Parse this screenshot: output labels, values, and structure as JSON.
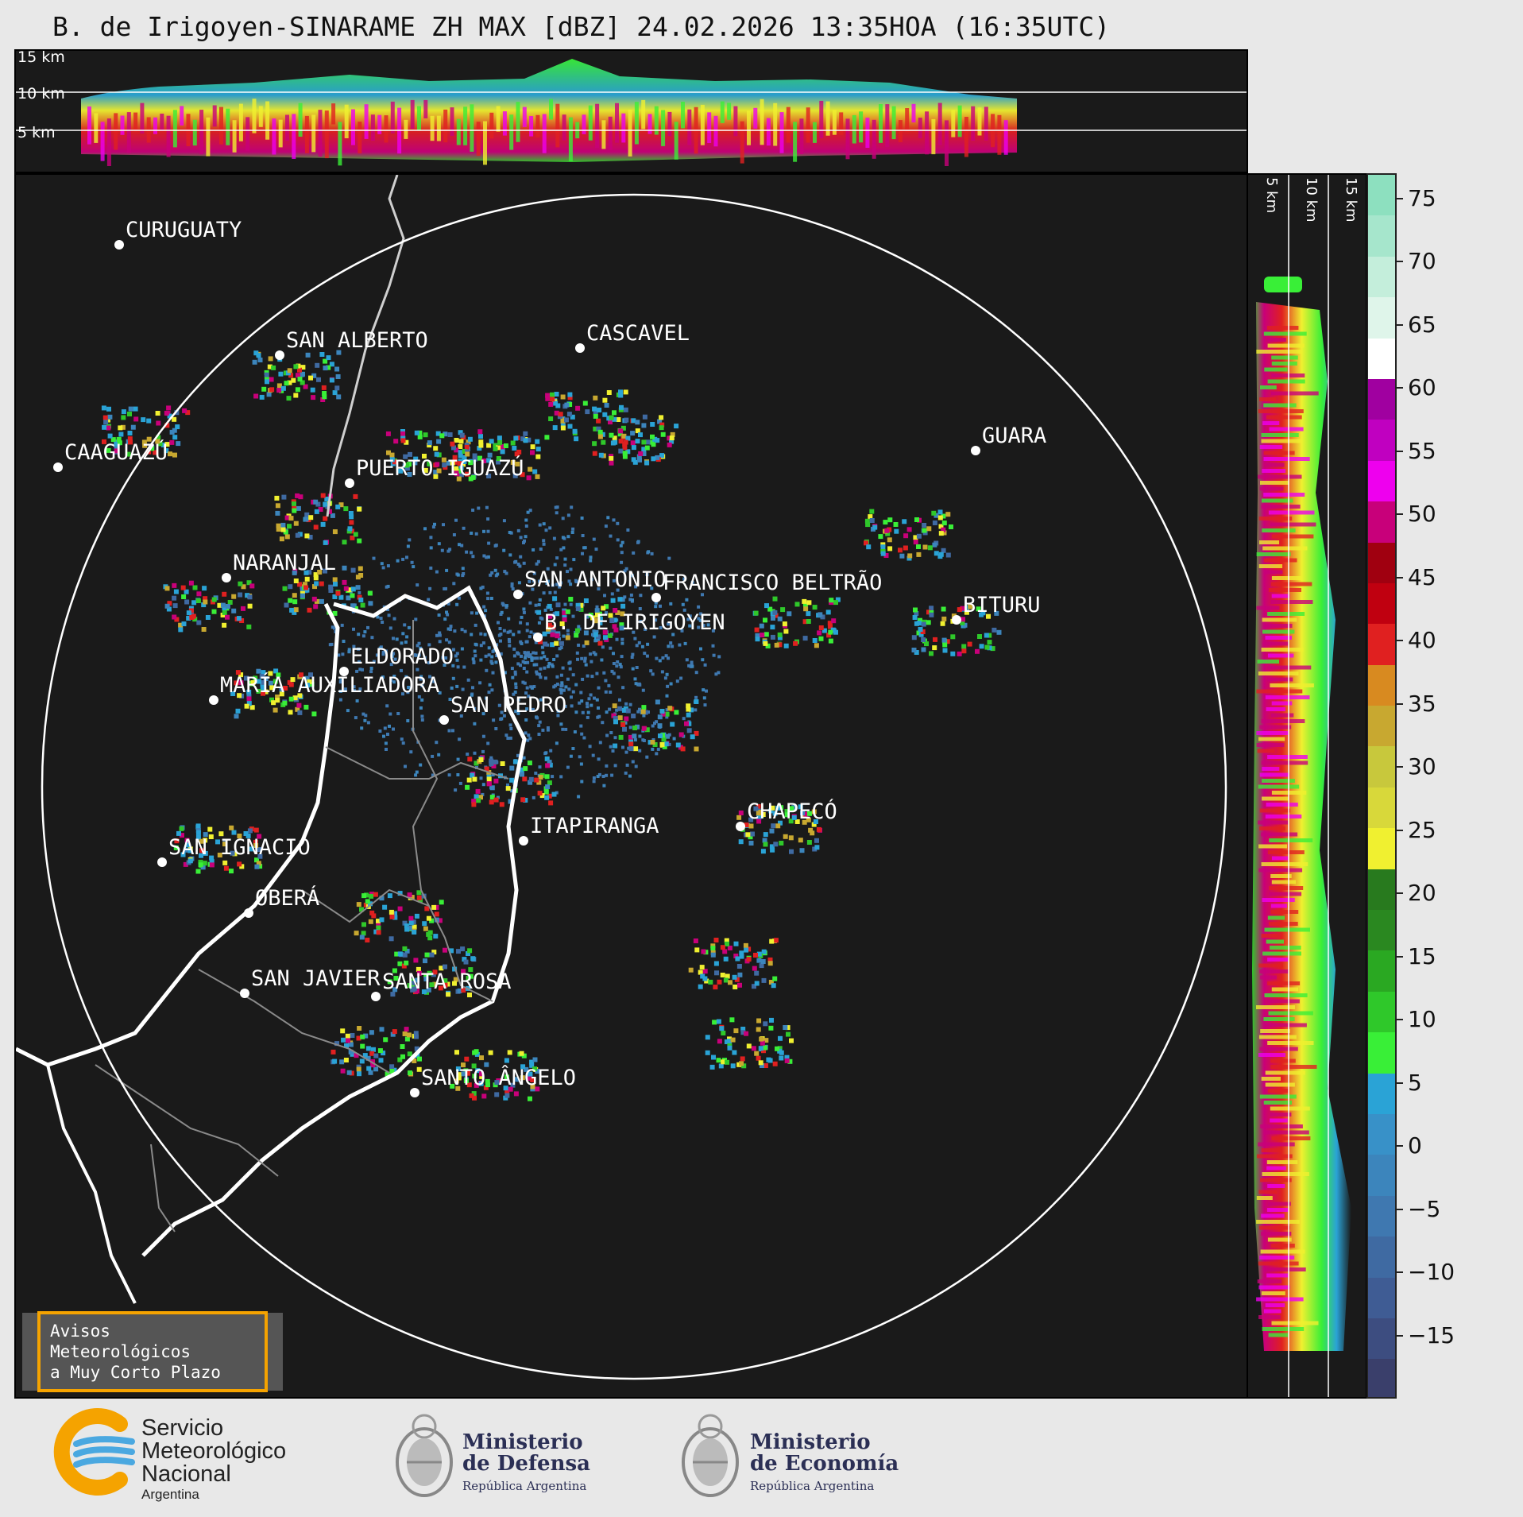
{
  "title": "B. de Irigoyen-SINARAME ZH MAX [dBZ] 24.02.2026 13:35HOA (16:35UTC)",
  "top_panel": {
    "altitude_labels": [
      "15 km",
      "10 km",
      "5 km"
    ]
  },
  "side_panel": {
    "altitude_labels": [
      "5 km",
      "10 km",
      "15 km"
    ]
  },
  "map": {
    "range_ring": true,
    "cities": [
      {
        "name": "CURUGUATY"
      },
      {
        "name": "SAN ALBERTO"
      },
      {
        "name": "CASCAVEL"
      },
      {
        "name": "CAAGUAZÚ"
      },
      {
        "name": "GUARA"
      },
      {
        "name": "PUERTO IGUAZÚ"
      },
      {
        "name": "NARANJAL"
      },
      {
        "name": "SAN ANTONIO"
      },
      {
        "name": "FRANCISCO BELTRÃO"
      },
      {
        "name": "B. DE IRIGOYEN"
      },
      {
        "name": "BITURU"
      },
      {
        "name": "ELDORADO"
      },
      {
        "name": "MARÍA AUXILIADORA"
      },
      {
        "name": "SAN PEDRO"
      },
      {
        "name": "CHAPECÓ"
      },
      {
        "name": "ITAPIRANGA"
      },
      {
        "name": "SAN IGNACIO"
      },
      {
        "name": "OBERÁ"
      },
      {
        "name": "SAN JAVIER"
      },
      {
        "name": "SANTA ROSA"
      },
      {
        "name": "SANTO ÂNGELO"
      }
    ]
  },
  "colorbar": {
    "unit": "dBZ",
    "ticks": [
      "75",
      "70",
      "65",
      "60",
      "55",
      "50",
      "45",
      "40",
      "35",
      "30",
      "25",
      "20",
      "15",
      "10",
      "5",
      "0",
      "−5",
      "−10",
      "−15"
    ],
    "tick_values": [
      75,
      70,
      65,
      60,
      55,
      50,
      45,
      40,
      35,
      30,
      25,
      20,
      15,
      10,
      5,
      0,
      -5,
      -10,
      -15
    ],
    "range": [
      -20,
      77
    ],
    "colors": [
      "#3a3f6b",
      "#3d4d80",
      "#3f5c94",
      "#3f6aa2",
      "#3f78b0",
      "#3c85bc",
      "#3891c8",
      "#2aa3d6",
      "#39ef37",
      "#2fc82a",
      "#2aa822",
      "#2a8820",
      "#287a1e",
      "#f0f030",
      "#d8d83a",
      "#c8c83c",
      "#c8a830",
      "#d88a20",
      "#e02020",
      "#c00010",
      "#a00010",
      "#c8007a",
      "#ee00ee",
      "#c000c0",
      "#a000a0",
      "#ffffff",
      "#dff5ea",
      "#c4eedb",
      "#a6e6cc",
      "#8de0bf"
    ]
  },
  "warning_box": {
    "line1": "Avisos Meteorológicos",
    "line2": "a Muy Corto Plazo"
  },
  "footer": {
    "smn": {
      "line1": "Servicio",
      "line2": "Meteorológico",
      "line3": "Nacional",
      "country": "Argentina"
    },
    "defensa": {
      "line1": "Ministerio",
      "line2": "de Defensa",
      "line3": "República Argentina"
    },
    "economia": {
      "line1": "Ministerio",
      "line2": "de Economía",
      "line3": "República Argentina"
    }
  },
  "colors": {
    "background": "#e8e8e8",
    "panel": "#1a1a1a",
    "warning_border": "#f5a300"
  }
}
